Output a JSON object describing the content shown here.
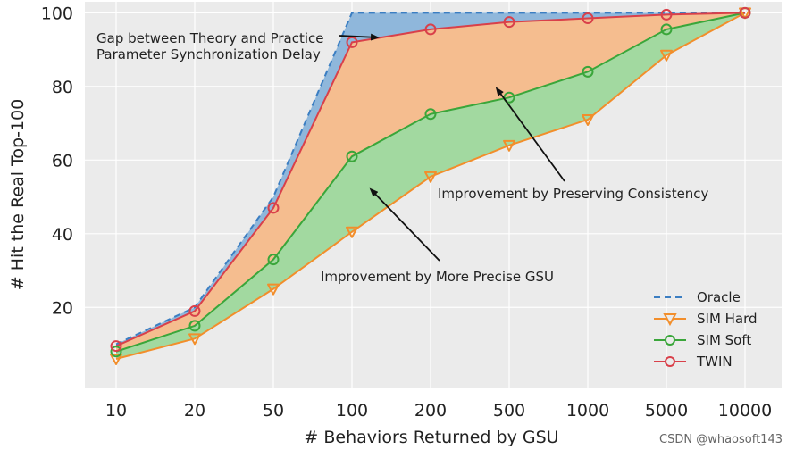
{
  "chart_data": {
    "type": "line",
    "title": "",
    "xlabel": "# Behaviors Returned by GSU",
    "ylabel": "# Hit the Real Top-100",
    "categories": [
      "10",
      "20",
      "50",
      "100",
      "200",
      "500",
      "1000",
      "5000",
      "10000"
    ],
    "yticks": [
      20,
      40,
      60,
      80,
      100
    ],
    "ylim": [
      -2,
      103
    ],
    "grid": true,
    "legend_position": "bottom-right",
    "series": [
      {
        "name": "Oracle",
        "style": "dashed",
        "marker": "none",
        "color": "#3b7ec2",
        "values": [
          10,
          20,
          50,
          100,
          100,
          100,
          100,
          100,
          100
        ]
      },
      {
        "name": "SIM Hard",
        "style": "solid",
        "marker": "triangle-down",
        "color": "#f28e2b",
        "values": [
          6,
          11.5,
          25,
          40.5,
          55.5,
          64,
          71,
          88.5,
          100
        ]
      },
      {
        "name": "SIM Soft",
        "style": "solid",
        "marker": "circle",
        "color": "#3aa63a",
        "values": [
          8,
          15,
          33,
          61,
          72.5,
          77,
          84,
          95.5,
          100
        ]
      },
      {
        "name": "TWIN",
        "style": "solid",
        "marker": "circle",
        "color": "#d9404a",
        "values": [
          9.5,
          19,
          47,
          92,
          95.5,
          97.5,
          98.5,
          99.5,
          100
        ]
      }
    ],
    "fills": [
      {
        "between": [
          "SIM Hard",
          "SIM Soft"
        ],
        "color": "#a2d9a0"
      },
      {
        "between": [
          "SIM Soft",
          "TWIN"
        ],
        "color": "#f5bd8f"
      },
      {
        "between": [
          "TWIN",
          "Oracle"
        ],
        "color": "#8fb7db"
      }
    ],
    "annotations": [
      {
        "lines": [
          "Gap between Theory and Practice",
          "Parameter Synchronization Delay"
        ]
      },
      {
        "lines": [
          "Improvement by Preserving Consistency"
        ]
      },
      {
        "lines": [
          "Improvement by More Precise GSU"
        ]
      }
    ]
  },
  "watermark": "CSDN @whaosoft143"
}
